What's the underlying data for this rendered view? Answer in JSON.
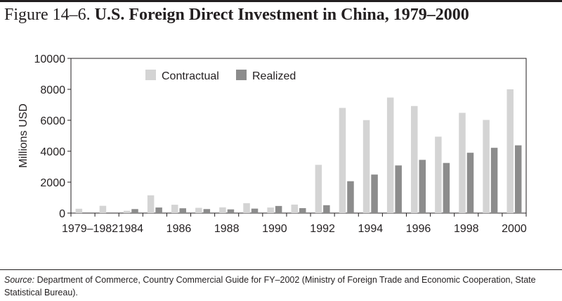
{
  "figure": {
    "number": "Figure 14–6.",
    "title": "U.S. Foreign Direct Investment in China, 1979–2000"
  },
  "source": {
    "label": "Source:",
    "text": "Department of Commerce, Country Commercial Guide for FY–2002 (Ministry of Foreign Trade and Economic Cooperation, State Statistical Bureau)."
  },
  "chart_data": {
    "type": "bar",
    "title": "",
    "xlabel": "",
    "ylabel": "Millions USD",
    "ylim": [
      0,
      10000
    ],
    "yticks": [
      0,
      2000,
      4000,
      6000,
      8000,
      10000
    ],
    "grid": false,
    "legend_position": "top",
    "categories": [
      "1979–1982",
      "1983",
      "1984",
      "1985",
      "1986",
      "1987",
      "1988",
      "1989",
      "1990",
      "1991",
      "1992",
      "1993",
      "1994",
      "1995",
      "1996",
      "1997",
      "1998",
      "1999",
      "2000"
    ],
    "tick_labels": [
      "1979–1982",
      "1984",
      "1986",
      "1988",
      "1990",
      "1992",
      "1994",
      "1996",
      "1998",
      "2000"
    ],
    "series": [
      {
        "name": "Contractual",
        "color": "#d4d4d4",
        "values": [
          280,
          470,
          150,
          1150,
          540,
          340,
          370,
          640,
          360,
          550,
          3120,
          6800,
          6010,
          7470,
          6920,
          4940,
          6480,
          6020,
          8000
        ]
      },
      {
        "name": "Realized",
        "color": "#8c8c8c",
        "values": [
          0,
          0,
          260,
          360,
          310,
          260,
          240,
          290,
          460,
          320,
          510,
          2060,
          2490,
          3080,
          3440,
          3240,
          3900,
          4220,
          4380
        ]
      }
    ]
  }
}
